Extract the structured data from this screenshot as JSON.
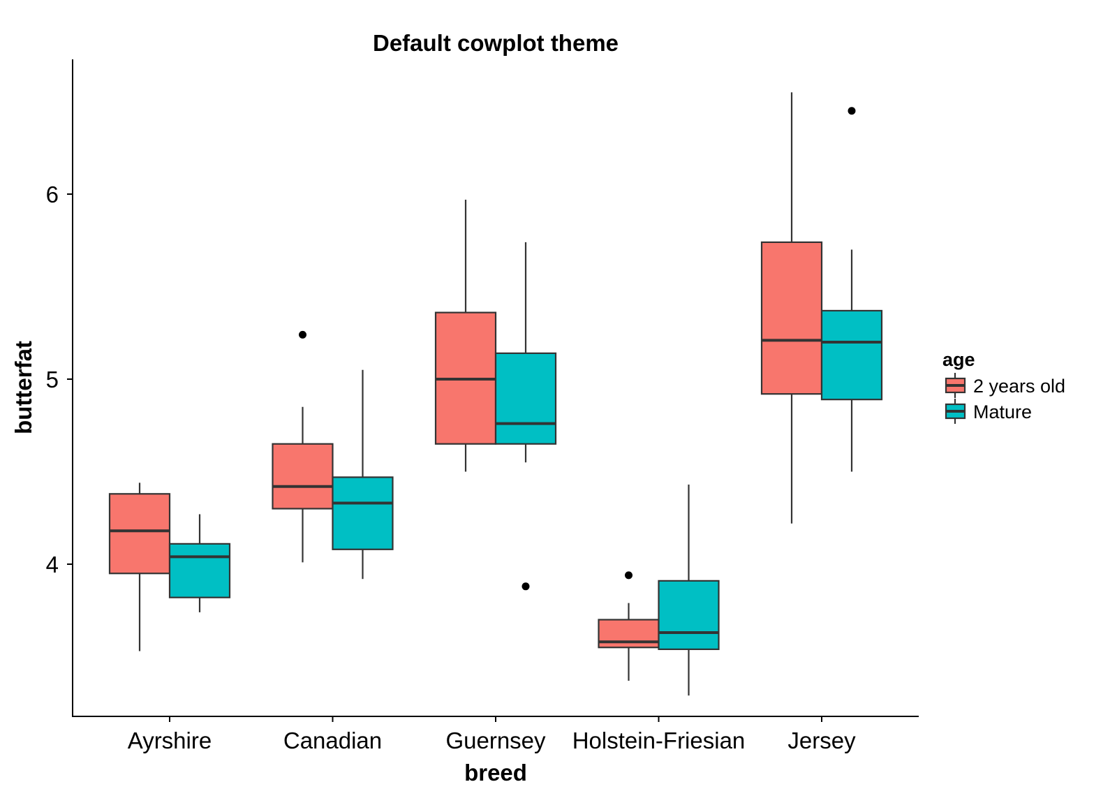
{
  "chart_data": {
    "type": "boxplot",
    "title": "Default cowplot theme",
    "xlabel": "breed",
    "ylabel": "butterfat",
    "categories": [
      "Ayrshire",
      "Canadian",
      "Guernsey",
      "Holstein-Friesian",
      "Jersey"
    ],
    "yticks": [
      4,
      5,
      6
    ],
    "ylim": [
      3.15,
      6.7
    ],
    "grid": false,
    "legend": {
      "title": "age",
      "position": "right",
      "items": [
        {
          "label": "2 years old",
          "color": "#F8766D"
        },
        {
          "label": "Mature",
          "color": "#00BFC4"
        }
      ]
    },
    "series": [
      {
        "name": "2 years old",
        "color": "#F8766D",
        "boxes": [
          {
            "category": "Ayrshire",
            "min": 3.53,
            "q1": 3.95,
            "median": 4.18,
            "q3": 4.38,
            "max": 4.44,
            "outliers": []
          },
          {
            "category": "Canadian",
            "min": 4.01,
            "q1": 4.3,
            "median": 4.42,
            "q3": 4.65,
            "max": 4.85,
            "outliers": [
              5.24
            ]
          },
          {
            "category": "Guernsey",
            "min": 4.5,
            "q1": 4.65,
            "median": 5.0,
            "q3": 5.36,
            "max": 5.97,
            "outliers": []
          },
          {
            "category": "Holstein-Friesian",
            "min": 3.37,
            "q1": 3.55,
            "median": 3.58,
            "q3": 3.7,
            "max": 3.79,
            "outliers": [
              3.94
            ]
          },
          {
            "category": "Jersey",
            "min": 4.22,
            "q1": 4.92,
            "median": 5.21,
            "q3": 5.74,
            "max": 6.55,
            "outliers": []
          }
        ]
      },
      {
        "name": "Mature",
        "color": "#00BFC4",
        "boxes": [
          {
            "category": "Ayrshire",
            "min": 3.74,
            "q1": 3.82,
            "median": 4.04,
            "q3": 4.11,
            "max": 4.27,
            "outliers": []
          },
          {
            "category": "Canadian",
            "min": 3.92,
            "q1": 4.08,
            "median": 4.33,
            "q3": 4.47,
            "max": 5.05,
            "outliers": []
          },
          {
            "category": "Guernsey",
            "min": 4.55,
            "q1": 4.65,
            "median": 4.76,
            "q3": 5.14,
            "max": 5.74,
            "outliers": [
              3.88
            ]
          },
          {
            "category": "Holstein-Friesian",
            "min": 3.29,
            "q1": 3.54,
            "median": 3.63,
            "q3": 3.91,
            "max": 4.43,
            "outliers": []
          },
          {
            "category": "Jersey",
            "min": 4.5,
            "q1": 4.89,
            "median": 5.2,
            "q3": 5.37,
            "max": 5.7,
            "outliers": [
              6.45
            ]
          }
        ]
      }
    ]
  }
}
